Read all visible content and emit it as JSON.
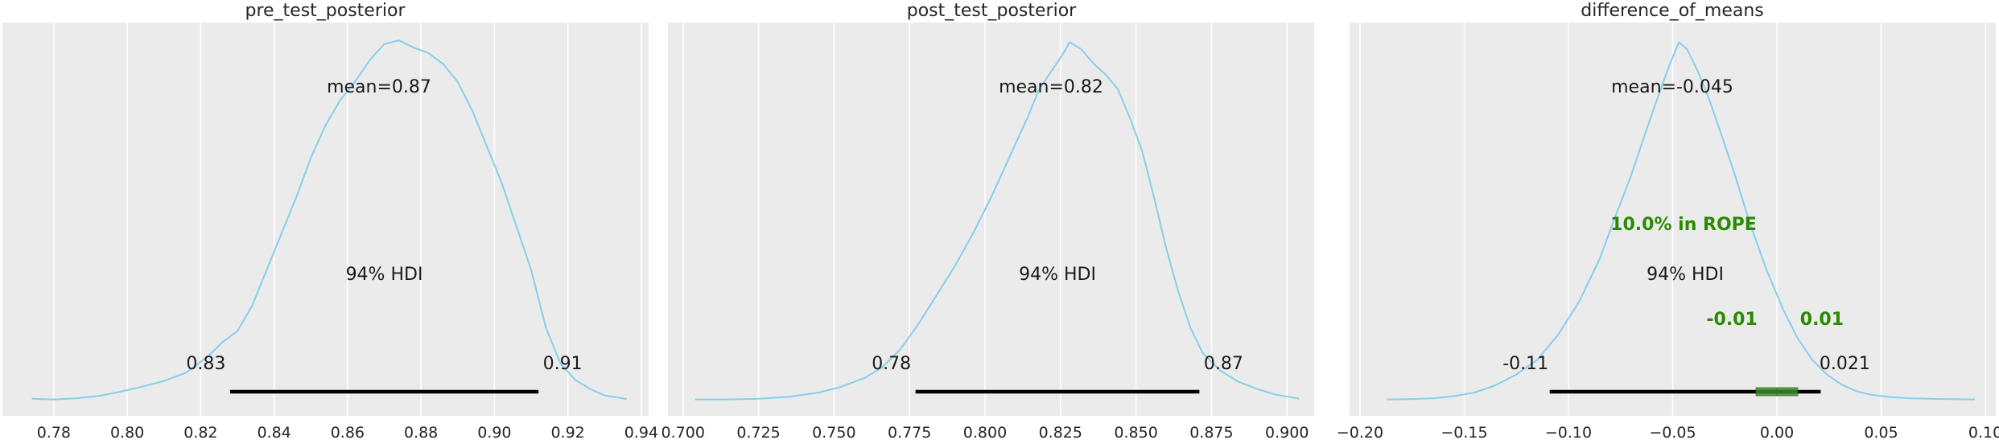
{
  "chart_data": [
    {
      "type": "area",
      "title": "pre_test_posterior",
      "xlim": [
        0.766,
        0.942
      ],
      "xticks": [
        0.78,
        0.8,
        0.82,
        0.84,
        0.86,
        0.88,
        0.9,
        0.92,
        0.94
      ],
      "xtick_labels": [
        "0.78",
        "0.80",
        "0.82",
        "0.84",
        "0.86",
        "0.88",
        "0.90",
        "0.92",
        "0.94"
      ],
      "ylim": [
        0,
        1
      ],
      "grid": true,
      "density": {
        "x": [
          0.774,
          0.78,
          0.786,
          0.792,
          0.798,
          0.804,
          0.81,
          0.816,
          0.822,
          0.826,
          0.83,
          0.834,
          0.838,
          0.842,
          0.846,
          0.85,
          0.854,
          0.858,
          0.862,
          0.866,
          0.87,
          0.874,
          0.878,
          0.882,
          0.886,
          0.89,
          0.894,
          0.898,
          0.902,
          0.906,
          0.91,
          0.914,
          0.918,
          0.922,
          0.926,
          0.93,
          0.936
        ],
        "y": [
          0.003,
          0.001,
          0.004,
          0.01,
          0.022,
          0.036,
          0.052,
          0.075,
          0.12,
          0.16,
          0.19,
          0.26,
          0.36,
          0.46,
          0.56,
          0.67,
          0.76,
          0.83,
          0.88,
          0.94,
          0.985,
          0.995,
          0.975,
          0.96,
          0.93,
          0.88,
          0.8,
          0.7,
          0.6,
          0.48,
          0.36,
          0.2,
          0.1,
          0.055,
          0.03,
          0.012,
          0.002
        ]
      },
      "mean_label": "mean=0.87",
      "hdi_label": "94% HDI",
      "hdi": [
        0.828,
        0.912
      ],
      "hdi_low_label": "0.83",
      "hdi_high_label": "0.91"
    },
    {
      "type": "area",
      "title": "post_test_posterior",
      "xlim": [
        0.695,
        0.909
      ],
      "xticks": [
        0.7,
        0.725,
        0.75,
        0.775,
        0.8,
        0.825,
        0.85,
        0.875,
        0.9
      ],
      "xtick_labels": [
        "0.700",
        "0.725",
        "0.750",
        "0.775",
        "0.800",
        "0.825",
        "0.850",
        "0.875",
        "0.900"
      ],
      "ylim": [
        0,
        1
      ],
      "grid": true,
      "density": {
        "x": [
          0.704,
          0.715,
          0.725,
          0.735,
          0.745,
          0.752,
          0.76,
          0.766,
          0.772,
          0.778,
          0.784,
          0.79,
          0.796,
          0.802,
          0.808,
          0.814,
          0.818,
          0.822,
          0.826,
          0.828,
          0.832,
          0.836,
          0.84,
          0.844,
          0.848,
          0.852,
          0.856,
          0.86,
          0.864,
          0.868,
          0.872,
          0.878,
          0.884,
          0.89,
          0.896,
          0.904
        ],
        "y": [
          0.001,
          0.001,
          0.003,
          0.008,
          0.02,
          0.035,
          0.06,
          0.09,
          0.14,
          0.21,
          0.29,
          0.37,
          0.46,
          0.56,
          0.67,
          0.78,
          0.86,
          0.91,
          0.96,
          0.99,
          0.97,
          0.93,
          0.9,
          0.86,
          0.78,
          0.69,
          0.56,
          0.42,
          0.3,
          0.2,
          0.13,
          0.08,
          0.05,
          0.03,
          0.015,
          0.003
        ]
      },
      "mean_label": "mean=0.82",
      "hdi_label": "94% HDI",
      "hdi": [
        0.777,
        0.871
      ],
      "hdi_low_label": "0.78",
      "hdi_high_label": "0.87"
    },
    {
      "type": "area",
      "title": "difference_of_means",
      "xlim": [
        -0.205,
        0.105
      ],
      "xticks": [
        -0.2,
        -0.15,
        -0.1,
        -0.05,
        0.0,
        0.05,
        0.1
      ],
      "xtick_labels": [
        "−0.20",
        "−0.15",
        "−0.10",
        "−0.05",
        "0.00",
        "0.05",
        "0.10"
      ],
      "ylim": [
        0,
        1
      ],
      "grid": true,
      "density": {
        "x": [
          -0.187,
          -0.175,
          -0.165,
          -0.155,
          -0.145,
          -0.135,
          -0.125,
          -0.115,
          -0.105,
          -0.095,
          -0.085,
          -0.078,
          -0.07,
          -0.063,
          -0.057,
          -0.052,
          -0.047,
          -0.043,
          -0.038,
          -0.033,
          -0.027,
          -0.02,
          -0.013,
          -0.005,
          0.003,
          0.01,
          0.017,
          0.024,
          0.031,
          0.038,
          0.045,
          0.055,
          0.065,
          0.08,
          0.095
        ],
        "y": [
          0.001,
          0.002,
          0.004,
          0.01,
          0.02,
          0.04,
          0.07,
          0.11,
          0.18,
          0.27,
          0.39,
          0.5,
          0.62,
          0.74,
          0.84,
          0.92,
          0.99,
          0.97,
          0.91,
          0.84,
          0.74,
          0.62,
          0.49,
          0.36,
          0.25,
          0.17,
          0.11,
          0.07,
          0.042,
          0.024,
          0.014,
          0.007,
          0.004,
          0.002,
          0.001
        ]
      },
      "mean_label": "mean=-0.045",
      "hdi_label": "94% HDI",
      "hdi": [
        -0.109,
        0.021
      ],
      "hdi_low_label": "-0.11",
      "hdi_high_label": "0.021",
      "rope": [
        -0.01,
        0.01
      ],
      "rope_label": "10.0% in ROPE",
      "rope_low_label": "-0.01",
      "rope_high_label": "0.01"
    }
  ],
  "colors": {
    "background": "#ebebeb",
    "grid": "#ffffff",
    "kde_line": "#87ceeb",
    "hdi_bar": "#000000",
    "rope_text": "#2a8a00",
    "rope_box": "#3a8a2a"
  }
}
